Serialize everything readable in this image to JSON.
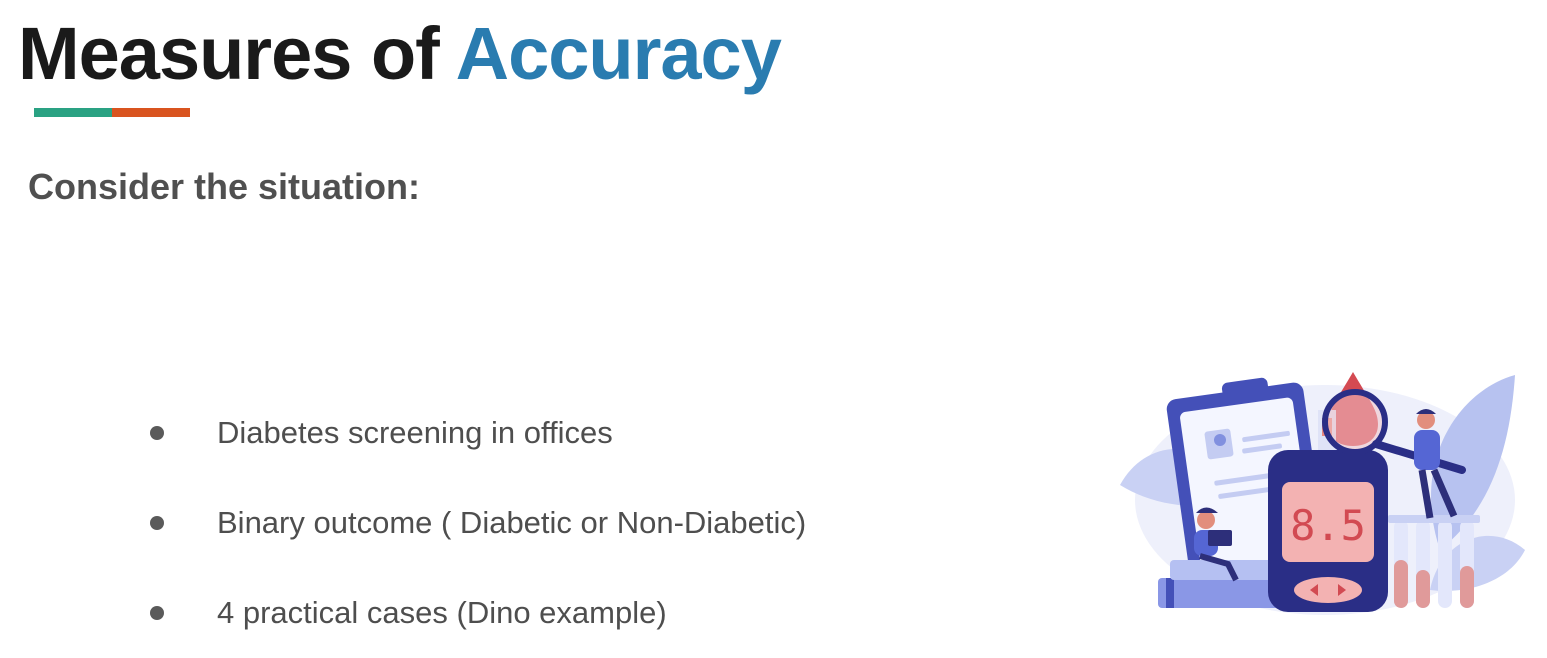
{
  "slide": {
    "title_part1": "Measures of ",
    "title_part2": "Accuracy",
    "subtitle": "Consider the situation:",
    "bullets": [
      "Diabetes screening in offices",
      "Binary outcome ( Diabetic or Non-Diabetic)",
      "4 practical cases (Dino example)"
    ],
    "illustration": {
      "meter_reading": "8.5",
      "icon": "glucose-meter-illustration"
    }
  },
  "colors": {
    "title_dark": "#1a1a1a",
    "title_accent": "#2a7cb0",
    "underline_green": "#2aa283",
    "underline_orange": "#d9541f"
  }
}
